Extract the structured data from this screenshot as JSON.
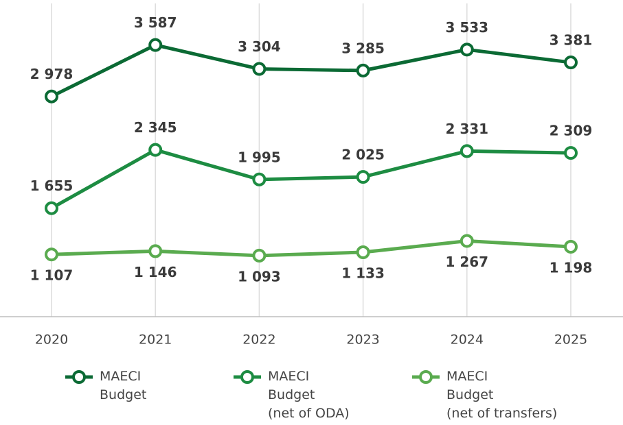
{
  "chart_data": {
    "type": "line",
    "categories": [
      "2020",
      "2021",
      "2022",
      "2023",
      "2024",
      "2025"
    ],
    "series": [
      {
        "name": "MAECI\nBudget",
        "color": "#0b6a34",
        "values": [
          2978,
          3587,
          3304,
          3285,
          3533,
          3381
        ],
        "value_labels": [
          "2 978",
          "3 587",
          "3 304",
          "3 285",
          "3 533",
          "3 381"
        ]
      },
      {
        "name": "MAECI\nBudget\n(net of ODA)",
        "color": "#1d8c42",
        "values": [
          1655,
          2345,
          1995,
          2025,
          2331,
          2309
        ],
        "value_labels": [
          "1 655",
          "2 345",
          "1 995",
          "2 025",
          "2 331",
          "2 309"
        ]
      },
      {
        "name": "MAECI\nBudget\n(net of transfers)",
        "color": "#5aab4f",
        "values": [
          1107,
          1146,
          1093,
          1133,
          1267,
          1198
        ],
        "value_labels": [
          "1 107",
          "1 146",
          "1 093",
          "1 133",
          "1 267",
          "1 198"
        ]
      }
    ],
    "ylim": [
      370,
      4120
    ],
    "grid": true
  }
}
